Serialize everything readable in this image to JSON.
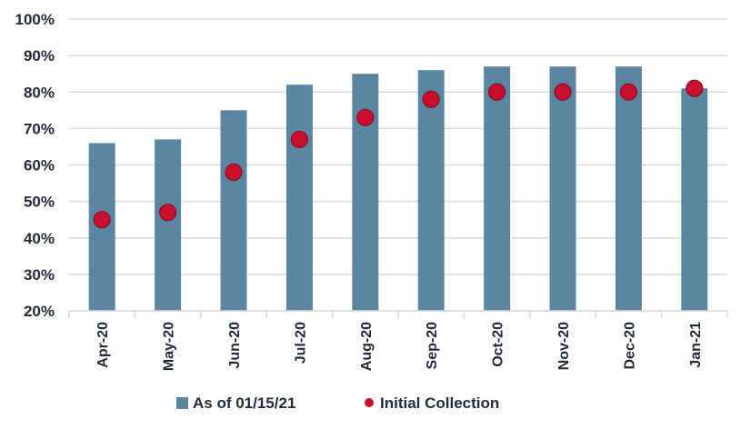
{
  "chart_data": {
    "type": "bar",
    "categories": [
      "Apr-20",
      "May-20",
      "Jun-20",
      "Jul-20",
      "Aug-20",
      "Sep-20",
      "Oct-20",
      "Nov-20",
      "Dec-20",
      "Jan-21"
    ],
    "series": [
      {
        "name": "As of 01/15/21",
        "kind": "bar",
        "color": "#5b85a0",
        "values": [
          66,
          67,
          75,
          82,
          85,
          86,
          87,
          87,
          87,
          81
        ]
      },
      {
        "name": "Initial Collection",
        "kind": "dot",
        "color": "#c8102e",
        "values": [
          45,
          47,
          58,
          67,
          73,
          78,
          80,
          80,
          80,
          81
        ]
      }
    ],
    "y_ticks": [
      "20%",
      "30%",
      "40%",
      "50%",
      "60%",
      "70%",
      "80%",
      "90%",
      "100%"
    ],
    "ylim": [
      20,
      100
    ],
    "grid": true,
    "legend_position": "bottom-center"
  }
}
